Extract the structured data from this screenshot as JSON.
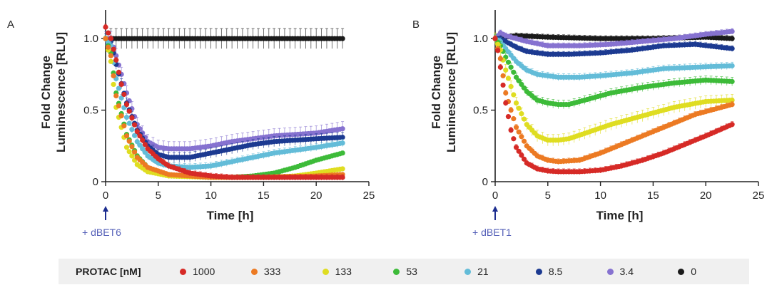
{
  "figure": {
    "legend": {
      "title": "PROTAC [nM]",
      "entries": [
        {
          "label": "1000",
          "color": "#d62a26"
        },
        {
          "label": "333",
          "color": "#ec7a23"
        },
        {
          "label": "133",
          "color": "#dfdd21"
        },
        {
          "label": "53",
          "color": "#3dbb39"
        },
        {
          "label": "21",
          "color": "#63bcd8"
        },
        {
          "label": "8.5",
          "color": "#1c3a91"
        },
        {
          "label": "3.4",
          "color": "#8672d0"
        },
        {
          "label": "0",
          "color": "#1a1a1a"
        }
      ]
    }
  },
  "chart_data": [
    {
      "type": "scatter",
      "panel_label": "A",
      "xlabel": "Time [h]",
      "ylabel": [
        "Fold Change",
        "Luminescence [RLU]"
      ],
      "xlim": [
        0,
        25
      ],
      "ylim": [
        0,
        1.2
      ],
      "xticks": [
        "0",
        "5",
        "10",
        "15",
        "20",
        "25"
      ],
      "yticks": [
        "0",
        "0.5",
        "1.0"
      ],
      "treatment": "+ dBET6",
      "treatment_time": 0,
      "error_bars": true,
      "series": [
        {
          "name": "0",
          "color": "#1a1a1a",
          "points": [
            [
              0,
              1.0
            ],
            [
              1,
              1.0
            ],
            [
              2,
              1.0
            ],
            [
              4,
              1.0
            ],
            [
              6,
              1.0
            ],
            [
              8,
              1.0
            ],
            [
              10,
              1.0
            ],
            [
              14,
              1.0
            ],
            [
              18,
              1.0
            ],
            [
              22.5,
              1.0
            ]
          ],
          "error": 0.07
        },
        {
          "name": "3.4",
          "color": "#8672d0",
          "points": [
            [
              0,
              1.0
            ],
            [
              0.5,
              1.0
            ],
            [
              1,
              0.88
            ],
            [
              2,
              0.62
            ],
            [
              3,
              0.4
            ],
            [
              4,
              0.28
            ],
            [
              5,
              0.24
            ],
            [
              6,
              0.23
            ],
            [
              8,
              0.23
            ],
            [
              10,
              0.25
            ],
            [
              12,
              0.28
            ],
            [
              14,
              0.3
            ],
            [
              16,
              0.32
            ],
            [
              18,
              0.33
            ],
            [
              20,
              0.34
            ],
            [
              22.5,
              0.37
            ]
          ],
          "error": 0.05
        },
        {
          "name": "8.5",
          "color": "#1c3a91",
          "points": [
            [
              0,
              1.0
            ],
            [
              0.5,
              0.98
            ],
            [
              1,
              0.82
            ],
            [
              2,
              0.55
            ],
            [
              3,
              0.36
            ],
            [
              4,
              0.25
            ],
            [
              5,
              0.19
            ],
            [
              6,
              0.17
            ],
            [
              8,
              0.17
            ],
            [
              10,
              0.2
            ],
            [
              12,
              0.23
            ],
            [
              14,
              0.26
            ],
            [
              16,
              0.28
            ],
            [
              18,
              0.29
            ],
            [
              20,
              0.3
            ],
            [
              22.5,
              0.31
            ]
          ],
          "error": 0.035
        },
        {
          "name": "21",
          "color": "#63bcd8",
          "points": [
            [
              0,
              1.0
            ],
            [
              0.5,
              0.95
            ],
            [
              1,
              0.72
            ],
            [
              2,
              0.45
            ],
            [
              3,
              0.28
            ],
            [
              4,
              0.18
            ],
            [
              5,
              0.13
            ],
            [
              6,
              0.11
            ],
            [
              8,
              0.1
            ],
            [
              10,
              0.11
            ],
            [
              12,
              0.14
            ],
            [
              14,
              0.17
            ],
            [
              16,
              0.2
            ],
            [
              18,
              0.22
            ],
            [
              20,
              0.24
            ],
            [
              22.5,
              0.27
            ]
          ],
          "error": 0.025
        },
        {
          "name": "53",
          "color": "#3dbb39",
          "points": [
            [
              0,
              1.0
            ],
            [
              0.5,
              0.9
            ],
            [
              1,
              0.62
            ],
            [
              2,
              0.33
            ],
            [
              3,
              0.18
            ],
            [
              4,
              0.1
            ],
            [
              5,
              0.06
            ],
            [
              7,
              0.04
            ],
            [
              10,
              0.03
            ],
            [
              12,
              0.03
            ],
            [
              14,
              0.04
            ],
            [
              16,
              0.06
            ],
            [
              18,
              0.1
            ],
            [
              20,
              0.15
            ],
            [
              22.5,
              0.2
            ]
          ],
          "error": 0.015
        },
        {
          "name": "133",
          "color": "#dfdd21",
          "points": [
            [
              0,
              1.0
            ],
            [
              0.5,
              0.84
            ],
            [
              1,
              0.52
            ],
            [
              2,
              0.24
            ],
            [
              3,
              0.12
            ],
            [
              4,
              0.07
            ],
            [
              6,
              0.04
            ],
            [
              10,
              0.03
            ],
            [
              15,
              0.03
            ],
            [
              18,
              0.04
            ],
            [
              20,
              0.06
            ],
            [
              22.5,
              0.09
            ]
          ],
          "error": 0.01
        },
        {
          "name": "333",
          "color": "#ec7a23",
          "points": [
            [
              0,
              1.0
            ],
            [
              0.5,
              0.88
            ],
            [
              1,
              0.6
            ],
            [
              2,
              0.32
            ],
            [
              3,
              0.17
            ],
            [
              4,
              0.1
            ],
            [
              6,
              0.05
            ],
            [
              10,
              0.03
            ],
            [
              15,
              0.03
            ],
            [
              20,
              0.04
            ],
            [
              22.5,
              0.05
            ]
          ],
          "error": 0.01
        },
        {
          "name": "1000",
          "color": "#d62a26",
          "points": [
            [
              0,
              1.08
            ],
            [
              0.5,
              1.0
            ],
            [
              1,
              0.85
            ],
            [
              1.5,
              0.68
            ],
            [
              2,
              0.54
            ],
            [
              3,
              0.35
            ],
            [
              4,
              0.23
            ],
            [
              5,
              0.16
            ],
            [
              6,
              0.11
            ],
            [
              8,
              0.06
            ],
            [
              10,
              0.04
            ],
            [
              12,
              0.03
            ],
            [
              16,
              0.03
            ],
            [
              20,
              0.03
            ],
            [
              22.5,
              0.03
            ]
          ],
          "error": 0.02
        }
      ]
    },
    {
      "type": "scatter",
      "panel_label": "B",
      "xlabel": "Time [h]",
      "ylabel": [
        "Fold Change",
        "Luminescence [RLU]"
      ],
      "xlim": [
        0,
        25
      ],
      "ylim": [
        0,
        1.2
      ],
      "xticks": [
        "0",
        "5",
        "10",
        "15",
        "20",
        "25"
      ],
      "yticks": [
        "0",
        "0.5",
        "1.0"
      ],
      "treatment": "+ dBET1",
      "treatment_time": 0,
      "error_bars": true,
      "series": [
        {
          "name": "0",
          "color": "#1a1a1a",
          "points": [
            [
              0,
              1.0
            ],
            [
              2,
              1.02
            ],
            [
              5,
              1.01
            ],
            [
              10,
              1.0
            ],
            [
              15,
              1.0
            ],
            [
              20,
              1.01
            ],
            [
              22.5,
              1.0
            ]
          ],
          "error": 0.02
        },
        {
          "name": "3.4",
          "color": "#8672d0",
          "points": [
            [
              0,
              1.0
            ],
            [
              0.5,
              1.04
            ],
            [
              1,
              1.02
            ],
            [
              3,
              0.98
            ],
            [
              5,
              0.95
            ],
            [
              8,
              0.95
            ],
            [
              11,
              0.96
            ],
            [
              14,
              0.98
            ],
            [
              17,
              1.0
            ],
            [
              20,
              1.03
            ],
            [
              22.5,
              1.05
            ]
          ],
          "error": 0.02
        },
        {
          "name": "8.5",
          "color": "#1c3a91",
          "points": [
            [
              0,
              1.0
            ],
            [
              0.5,
              1.0
            ],
            [
              1,
              0.98
            ],
            [
              2,
              0.94
            ],
            [
              3,
              0.91
            ],
            [
              5,
              0.89
            ],
            [
              7,
              0.89
            ],
            [
              10,
              0.9
            ],
            [
              13,
              0.92
            ],
            [
              16,
              0.95
            ],
            [
              19,
              0.96
            ],
            [
              22.5,
              0.93
            ]
          ],
          "error": 0.02
        },
        {
          "name": "21",
          "color": "#63bcd8",
          "points": [
            [
              0,
              1.0
            ],
            [
              0.5,
              0.98
            ],
            [
              1,
              0.93
            ],
            [
              2,
              0.84
            ],
            [
              3,
              0.78
            ],
            [
              4,
              0.75
            ],
            [
              6,
              0.73
            ],
            [
              8,
              0.73
            ],
            [
              10,
              0.74
            ],
            [
              13,
              0.76
            ],
            [
              16,
              0.79
            ],
            [
              19,
              0.8
            ],
            [
              22.5,
              0.81
            ]
          ],
          "error": 0.025
        },
        {
          "name": "53",
          "color": "#3dbb39",
          "points": [
            [
              0,
              1.0
            ],
            [
              0.5,
              0.95
            ],
            [
              1,
              0.87
            ],
            [
              2,
              0.73
            ],
            [
              3,
              0.63
            ],
            [
              4,
              0.57
            ],
            [
              5,
              0.55
            ],
            [
              6,
              0.54
            ],
            [
              7,
              0.54
            ],
            [
              9,
              0.58
            ],
            [
              11,
              0.62
            ],
            [
              14,
              0.66
            ],
            [
              17,
              0.69
            ],
            [
              20,
              0.71
            ],
            [
              22.5,
              0.7
            ]
          ],
          "error": 0.03
        },
        {
          "name": "133",
          "color": "#dfdd21",
          "points": [
            [
              0,
              1.0
            ],
            [
              0.5,
              0.92
            ],
            [
              1,
              0.78
            ],
            [
              2,
              0.55
            ],
            [
              3,
              0.4
            ],
            [
              4,
              0.32
            ],
            [
              5,
              0.29
            ],
            [
              6,
              0.29
            ],
            [
              7,
              0.3
            ],
            [
              9,
              0.35
            ],
            [
              11,
              0.4
            ],
            [
              14,
              0.46
            ],
            [
              17,
              0.52
            ],
            [
              20,
              0.56
            ],
            [
              22.5,
              0.57
            ]
          ],
          "error": 0.04
        },
        {
          "name": "333",
          "color": "#ec7a23",
          "points": [
            [
              0,
              1.0
            ],
            [
              0.5,
              0.86
            ],
            [
              1,
              0.62
            ],
            [
              2,
              0.38
            ],
            [
              3,
              0.25
            ],
            [
              4,
              0.18
            ],
            [
              5,
              0.15
            ],
            [
              6,
              0.14
            ],
            [
              8,
              0.15
            ],
            [
              10,
              0.2
            ],
            [
              13,
              0.29
            ],
            [
              16,
              0.38
            ],
            [
              19,
              0.47
            ],
            [
              22.5,
              0.54
            ]
          ],
          "error": 0.02
        },
        {
          "name": "1000",
          "color": "#d62a26",
          "points": [
            [
              0,
              1.0
            ],
            [
              0.3,
              0.9
            ],
            [
              0.7,
              0.7
            ],
            [
              1,
              0.55
            ],
            [
              1.5,
              0.36
            ],
            [
              2,
              0.24
            ],
            [
              3,
              0.13
            ],
            [
              4,
              0.09
            ],
            [
              5,
              0.075
            ],
            [
              6,
              0.07
            ],
            [
              8,
              0.07
            ],
            [
              10,
              0.08
            ],
            [
              12,
              0.11
            ],
            [
              14,
              0.15
            ],
            [
              16,
              0.2
            ],
            [
              18,
              0.26
            ],
            [
              20,
              0.32
            ],
            [
              22.5,
              0.4
            ]
          ],
          "error": 0.02
        }
      ]
    }
  ]
}
